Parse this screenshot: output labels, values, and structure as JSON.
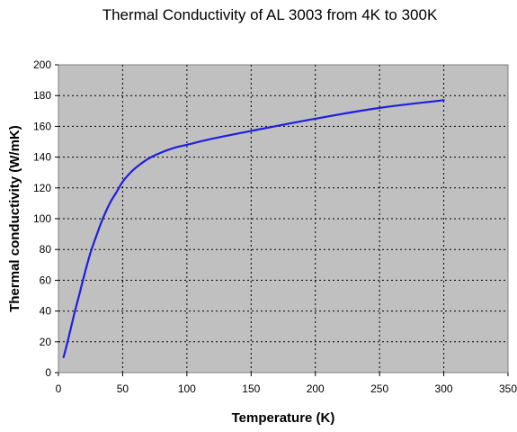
{
  "chart_data": {
    "type": "line",
    "title": "Thermal Conductivity of AL 3003 from 4K to 300K",
    "xlabel": "Temperature (K)",
    "ylabel": "Thermal conductivity (W/mK)",
    "xlim": [
      0,
      350
    ],
    "ylim": [
      0,
      200
    ],
    "xticks": [
      "0",
      "50",
      "100",
      "150",
      "200",
      "250",
      "300",
      "350"
    ],
    "yticks": [
      "0",
      "20",
      "40",
      "60",
      "80",
      "100",
      "120",
      "140",
      "160",
      "180",
      "200"
    ],
    "grid": true,
    "legend": "none",
    "plot_background": "#c0c0c0",
    "series": [
      {
        "color": "#1f1fe0",
        "x": [
          4,
          8,
          12,
          16,
          20,
          25,
          30,
          35,
          40,
          45,
          50,
          55,
          60,
          70,
          80,
          90,
          100,
          120,
          150,
          200,
          250,
          300
        ],
        "y": [
          10,
          23,
          37,
          50,
          63,
          78,
          90,
          101,
          110,
          117,
          124,
          129,
          133,
          139,
          143,
          146,
          148,
          152,
          157,
          165,
          172,
          177
        ]
      }
    ]
  }
}
